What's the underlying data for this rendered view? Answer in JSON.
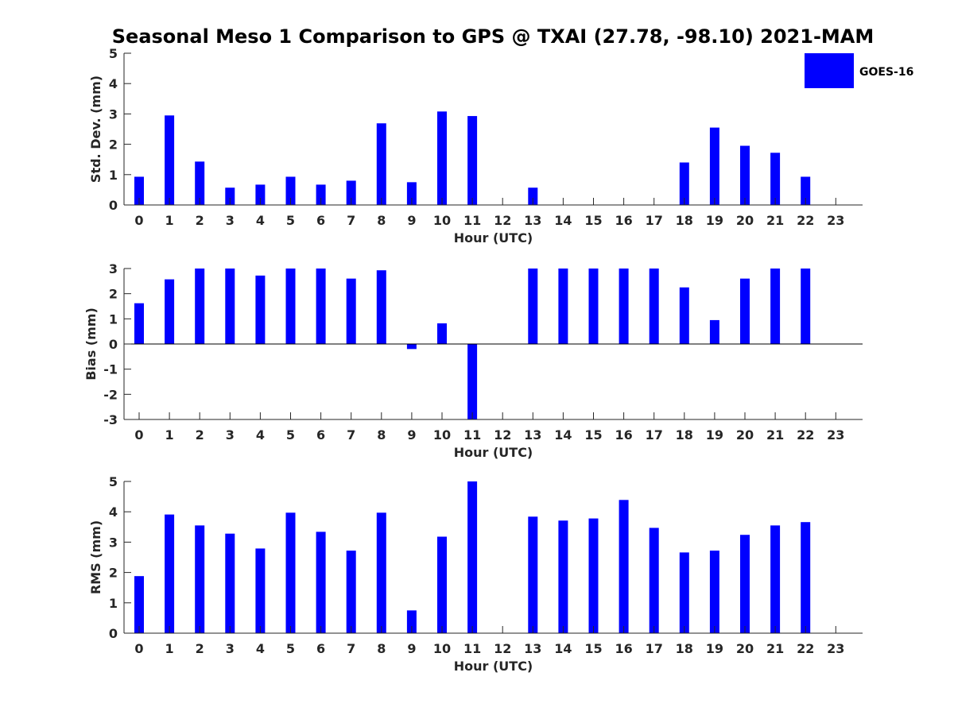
{
  "figure": {
    "title": "Seasonal Meso 1 Comparison to GPS @ TXAI (27.78, -98.10) 2021-MAM"
  },
  "legend": {
    "label": "GOES-16",
    "color": "#0000ff",
    "placement": "top-right"
  },
  "chart_data": [
    {
      "type": "bar",
      "xlabel": "Hour (UTC)",
      "ylabel": "Std. Dev. (mm)",
      "ylim": [
        0,
        5
      ],
      "yticks": [
        0,
        1,
        2,
        3,
        4,
        5
      ],
      "categories": [
        "0",
        "1",
        "2",
        "3",
        "4",
        "5",
        "6",
        "7",
        "8",
        "9",
        "10",
        "11",
        "12",
        "13",
        "14",
        "15",
        "16",
        "17",
        "18",
        "19",
        "20",
        "21",
        "22",
        "23"
      ],
      "series": [
        {
          "name": "GOES-16",
          "values": [
            0.93,
            2.95,
            1.43,
            0.57,
            0.67,
            0.93,
            0.67,
            0.8,
            2.69,
            0.75,
            3.08,
            2.93,
            null,
            0.57,
            null,
            null,
            null,
            null,
            1.4,
            2.55,
            1.95,
            1.72,
            0.93,
            null
          ]
        }
      ]
    },
    {
      "type": "bar",
      "xlabel": "Hour (UTC)",
      "ylabel": "Bias (mm)",
      "ylim": [
        -3,
        3
      ],
      "yticks": [
        -3,
        -2,
        -1,
        0,
        1,
        2,
        3
      ],
      "categories": [
        "0",
        "1",
        "2",
        "3",
        "4",
        "5",
        "6",
        "7",
        "8",
        "9",
        "10",
        "11",
        "12",
        "13",
        "14",
        "15",
        "16",
        "17",
        "18",
        "19",
        "20",
        "21",
        "22",
        "23"
      ],
      "series": [
        {
          "name": "GOES-16",
          "values": [
            1.62,
            2.57,
            3.0,
            3.0,
            2.72,
            3.0,
            3.0,
            2.6,
            2.93,
            -0.2,
            0.82,
            -3.0,
            null,
            3.0,
            3.0,
            3.0,
            3.0,
            3.0,
            2.25,
            0.95,
            2.6,
            3.0,
            3.0,
            null
          ]
        }
      ]
    },
    {
      "type": "bar",
      "xlabel": "Hour (UTC)",
      "ylabel": "RMS (mm)",
      "ylim": [
        0,
        5
      ],
      "yticks": [
        0,
        1,
        2,
        3,
        4,
        5
      ],
      "categories": [
        "0",
        "1",
        "2",
        "3",
        "4",
        "5",
        "6",
        "7",
        "8",
        "9",
        "10",
        "11",
        "12",
        "13",
        "14",
        "15",
        "16",
        "17",
        "18",
        "19",
        "20",
        "21",
        "22",
        "23"
      ],
      "series": [
        {
          "name": "GOES-16",
          "values": [
            1.88,
            3.91,
            3.55,
            3.28,
            2.79,
            3.97,
            3.34,
            2.72,
            3.97,
            0.75,
            3.18,
            5.0,
            null,
            3.84,
            3.71,
            3.78,
            4.39,
            3.47,
            2.66,
            2.72,
            3.24,
            3.55,
            3.66,
            null
          ]
        }
      ]
    }
  ]
}
